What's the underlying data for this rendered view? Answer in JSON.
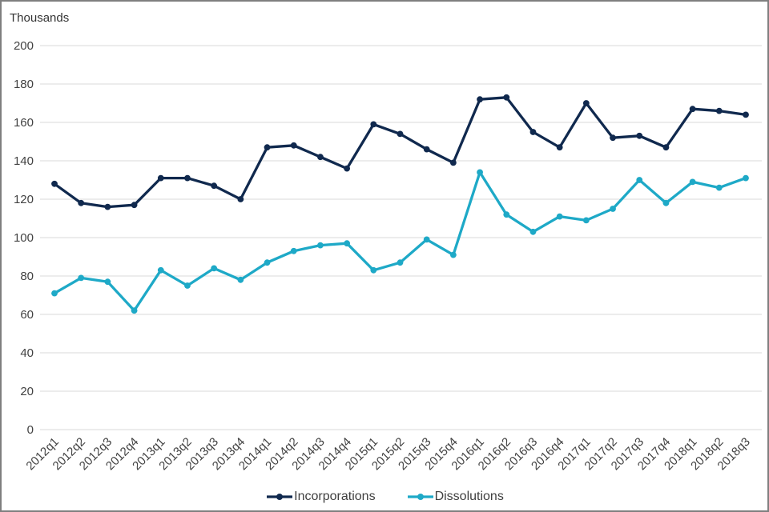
{
  "chart_data": {
    "type": "line",
    "unit_label": "Thousands",
    "categories": [
      "2012q1",
      "2012q2",
      "2012q3",
      "2012q4",
      "2013q1",
      "2013q2",
      "2013q3",
      "2013q4",
      "2014q1",
      "2014q2",
      "2014q3",
      "2014q4",
      "2015q1",
      "2015q2",
      "2015q3",
      "2015q4",
      "2016q1",
      "2016q2",
      "2016q3",
      "2016q4",
      "2017q1",
      "2017q2",
      "2017q3",
      "2017q4",
      "2018q1",
      "2018q2",
      "2018q3"
    ],
    "series": [
      {
        "name": "Incorporations",
        "color": "#10294e",
        "values": [
          128,
          118,
          116,
          117,
          131,
          131,
          127,
          120,
          147,
          148,
          142,
          136,
          159,
          154,
          146,
          139,
          172,
          173,
          155,
          147,
          170,
          152,
          153,
          147,
          167,
          166,
          164
        ]
      },
      {
        "name": "Dissolutions",
        "color": "#1ea9c7",
        "values": [
          71,
          79,
          77,
          62,
          83,
          75,
          84,
          78,
          87,
          93,
          96,
          97,
          83,
          87,
          99,
          91,
          134,
          112,
          103,
          111,
          109,
          115,
          130,
          118,
          129,
          126,
          131
        ]
      }
    ],
    "ylim": [
      0,
      200
    ],
    "ytick_step": 20,
    "ytick_labels": [
      "0",
      "20",
      "40",
      "60",
      "80",
      "100",
      "120",
      "140",
      "160",
      "180",
      "200"
    ],
    "grid": true,
    "legend_position": "bottom-center",
    "gridline_color": "#d9d9d9",
    "axis_text_color": "#424242"
  }
}
